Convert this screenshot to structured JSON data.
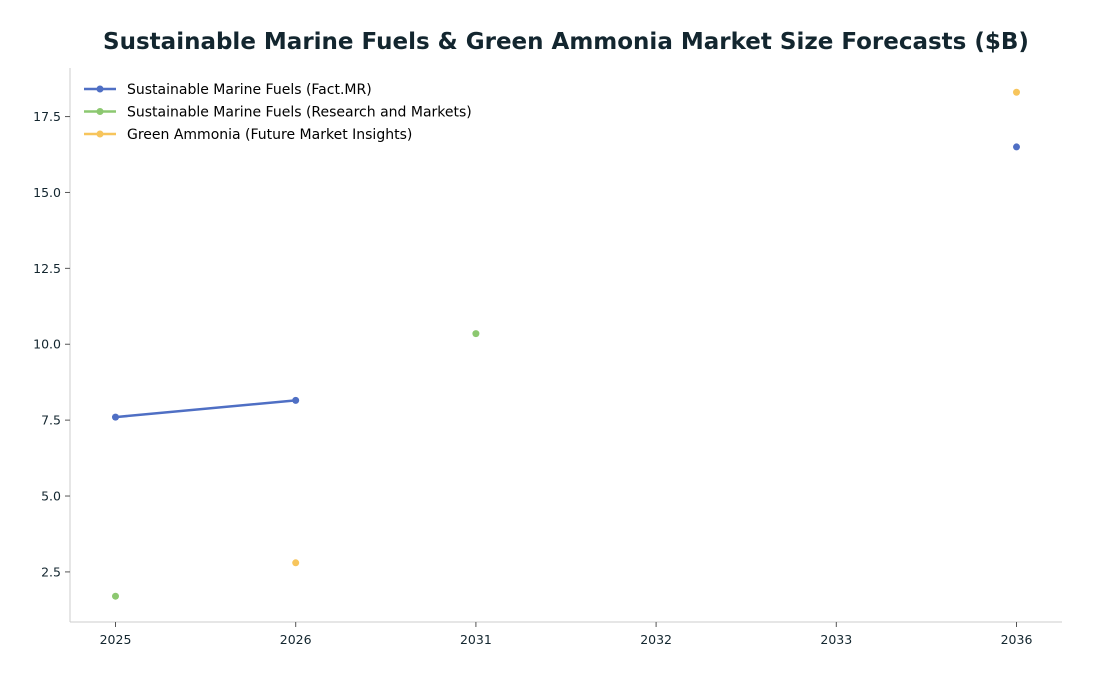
{
  "chart_data": {
    "type": "line",
    "title": "Sustainable Marine Fuels & Green Ammonia Market Size Forecasts ($B)",
    "xlabel": "",
    "ylabel": "",
    "categories": [
      "2025",
      "2026",
      "2031",
      "2032",
      "2033",
      "2036"
    ],
    "ylim": [
      0.85,
      19.1
    ],
    "yticks": [
      2.5,
      5.0,
      7.5,
      10.0,
      12.5,
      15.0,
      17.5
    ],
    "ytick_labels": [
      "2.5",
      "5.0",
      "7.5",
      "10.0",
      "12.5",
      "15.0",
      "17.5"
    ],
    "grid": false,
    "legend_position": "top-left",
    "series": [
      {
        "name": "Sustainable Marine Fuels (Fact.MR)",
        "color": "#4f6fc4",
        "points": [
          {
            "x": "2025",
            "y": 7.6
          },
          {
            "x": "2026",
            "y": 8.15
          },
          {
            "x": "2036",
            "y": 16.5
          }
        ]
      },
      {
        "name": "Sustainable Marine Fuels (Research and Markets)",
        "color": "#8cc870",
        "points": [
          {
            "x": "2025",
            "y": 1.7
          },
          {
            "x": "2031",
            "y": 10.35
          }
        ]
      },
      {
        "name": "Green Ammonia (Future Market Insights)",
        "color": "#f7c55c",
        "points": [
          {
            "x": "2026",
            "y": 2.8
          },
          {
            "x": "2036",
            "y": 18.3
          }
        ]
      }
    ]
  }
}
